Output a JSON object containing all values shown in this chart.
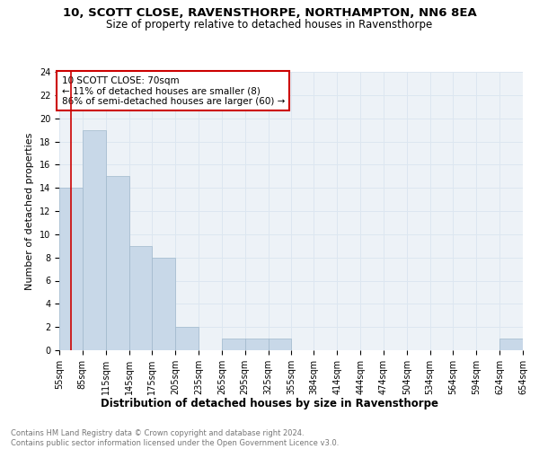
{
  "title1": "10, SCOTT CLOSE, RAVENSTHORPE, NORTHAMPTON, NN6 8EA",
  "title2": "Size of property relative to detached houses in Ravensthorpe",
  "xlabel": "Distribution of detached houses by size in Ravensthorpe",
  "ylabel": "Number of detached properties",
  "footnote_line1": "Contains HM Land Registry data © Crown copyright and database right 2024.",
  "footnote_line2": "Contains public sector information licensed under the Open Government Licence v3.0.",
  "annotation_title": "10 SCOTT CLOSE: 70sqm",
  "annotation_line1": "← 11% of detached houses are smaller (8)",
  "annotation_line2": "86% of semi-detached houses are larger (60) →",
  "property_size": 70,
  "bar_edges": [
    55,
    85,
    115,
    145,
    175,
    205,
    235,
    265,
    295,
    325,
    355,
    384,
    414,
    444,
    474,
    504,
    534,
    564,
    594,
    624,
    654
  ],
  "bar_heights": [
    14,
    19,
    15,
    9,
    8,
    2,
    0,
    1,
    1,
    1,
    0,
    0,
    0,
    0,
    0,
    0,
    0,
    0,
    0,
    1,
    0
  ],
  "bar_color": "#c8d8e8",
  "bar_edge_color": "#a0b8cc",
  "vline_color": "#cc0000",
  "vline_x": 70,
  "annotation_box_color": "#ffffff",
  "annotation_box_edge": "#cc0000",
  "grid_color": "#dce6f0",
  "ylim": [
    0,
    24
  ],
  "yticks": [
    0,
    2,
    4,
    6,
    8,
    10,
    12,
    14,
    16,
    18,
    20,
    22,
    24
  ],
  "bg_color": "#edf2f7",
  "title1_fontsize": 9.5,
  "title2_fontsize": 8.5,
  "xlabel_fontsize": 8.5,
  "ylabel_fontsize": 8,
  "tick_fontsize": 7,
  "footnote_fontsize": 6,
  "annotation_fontsize": 7.5
}
